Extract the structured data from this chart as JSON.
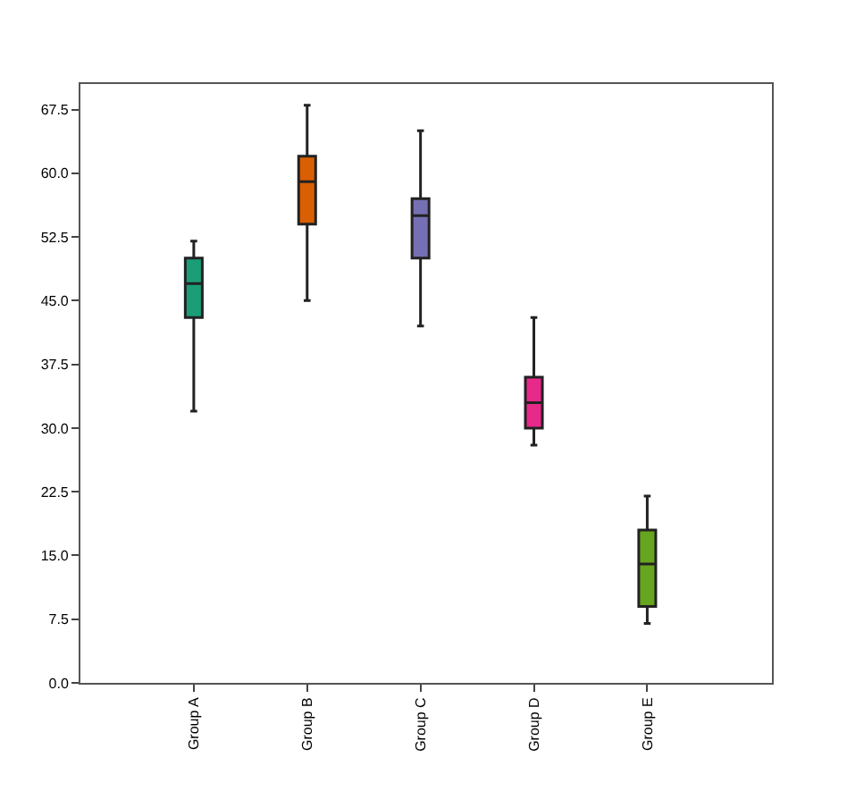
{
  "chart_data": {
    "type": "box",
    "categories": [
      "Group A",
      "Group B",
      "Group C",
      "Group D",
      "Group E"
    ],
    "colors": [
      "#1b9e77",
      "#d95f02",
      "#7570b3",
      "#e7298a",
      "#66a61e"
    ],
    "boxes": [
      {
        "low": 32,
        "q1": 43,
        "median": 47,
        "q3": 50,
        "high": 52
      },
      {
        "low": 45,
        "q1": 54,
        "median": 59,
        "q3": 62,
        "high": 68
      },
      {
        "low": 42,
        "q1": 50,
        "median": 55,
        "q3": 57,
        "high": 65
      },
      {
        "low": 28,
        "q1": 30,
        "median": 33,
        "q3": 36,
        "high": 43
      },
      {
        "low": 7,
        "q1": 9,
        "median": 14,
        "q3": 18,
        "high": 22
      }
    ],
    "ylim": [
      0,
      70.5
    ],
    "yticks": [
      {
        "value": 0,
        "label": "0.0"
      },
      {
        "value": 7.5,
        "label": "7.5"
      },
      {
        "value": 15,
        "label": "15.0"
      },
      {
        "value": 22.5,
        "label": "22.5"
      },
      {
        "value": 30,
        "label": "30.0"
      },
      {
        "value": 37.5,
        "label": "37.5"
      },
      {
        "value": 45,
        "label": "45.0"
      },
      {
        "value": 52.5,
        "label": "52.5"
      },
      {
        "value": 60,
        "label": "60.0"
      },
      {
        "value": 67.5,
        "label": "67.5"
      }
    ],
    "grid": false,
    "legend": false
  }
}
